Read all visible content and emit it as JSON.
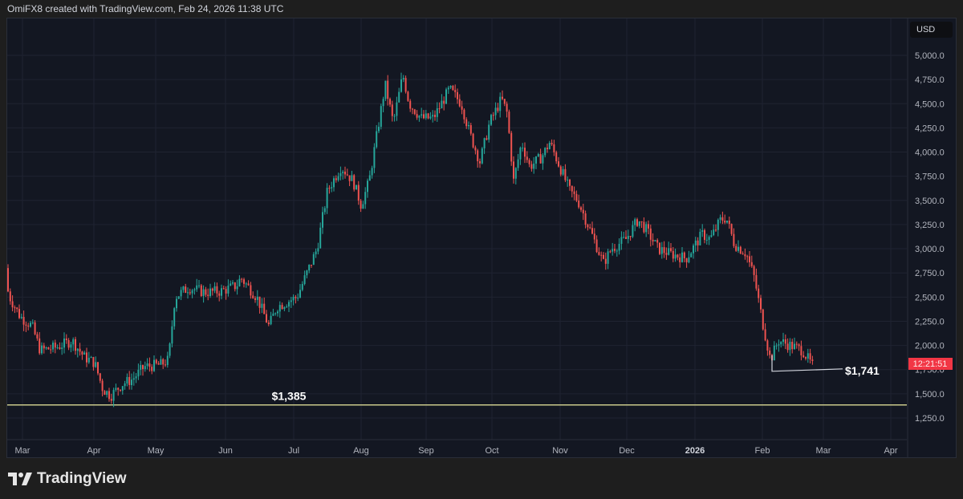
{
  "header": {
    "attribution": "OmiFX8 created with TradingView.com, Feb 24, 2026 11:38 UTC"
  },
  "currency_label": "USD",
  "countdown": "12:21:51",
  "brand": "TradingView",
  "annotations": {
    "support_label": "$1,385",
    "low_label": "$1,741"
  },
  "colors": {
    "up": "#26a69a",
    "down": "#ef5350",
    "support_line": "#c9c98a",
    "bg": "#131722",
    "grid": "#1f2331"
  },
  "chart_data": {
    "type": "candlestick",
    "title": "",
    "ylabel": "USD",
    "ylim": [
      1150,
      5150
    ],
    "y_ticks": [
      "5,000.0",
      "4,750.0",
      "4,500.0",
      "4,250.0",
      "4,000.0",
      "3,750.0",
      "3,500.0",
      "3,250.0",
      "3,000.0",
      "2,750.0",
      "2,500.0",
      "2,250.0",
      "2,000.0",
      "1,750.0",
      "1,500.0",
      "1,250.0"
    ],
    "x_ticks": [
      "Mar",
      "Apr",
      "May",
      "Jun",
      "Jul",
      "Aug",
      "Sep",
      "Oct",
      "Nov",
      "Dec",
      "2026",
      "Feb",
      "Mar",
      "Apr"
    ],
    "horizontal_line": {
      "price": 1385,
      "label": "$1,385"
    },
    "low_marker": {
      "price": 1741,
      "label": "$1,741"
    },
    "path": [
      [
        2,
        2800
      ],
      [
        12,
        2500
      ],
      [
        25,
        2300
      ],
      [
        40,
        2200
      ],
      [
        50,
        1950
      ],
      [
        70,
        1980
      ],
      [
        90,
        2050
      ],
      [
        105,
        1880
      ],
      [
        118,
        1820
      ],
      [
        128,
        1550
      ],
      [
        138,
        1480
      ],
      [
        152,
        1600
      ],
      [
        165,
        1650
      ],
      [
        180,
        1780
      ],
      [
        200,
        1800
      ],
      [
        210,
        1850
      ],
      [
        218,
        2500
      ],
      [
        235,
        2600
      ],
      [
        255,
        2550
      ],
      [
        275,
        2560
      ],
      [
        295,
        2620
      ],
      [
        300,
        2700
      ],
      [
        320,
        2500
      ],
      [
        335,
        2200
      ],
      [
        345,
        2400
      ],
      [
        370,
        2500
      ],
      [
        380,
        2700
      ],
      [
        395,
        3000
      ],
      [
        408,
        3600
      ],
      [
        425,
        3850
      ],
      [
        440,
        3700
      ],
      [
        450,
        3450
      ],
      [
        460,
        3700
      ],
      [
        470,
        4200
      ],
      [
        480,
        4700
      ],
      [
        490,
        4300
      ],
      [
        502,
        4800
      ],
      [
        510,
        4500
      ],
      [
        525,
        4350
      ],
      [
        540,
        4350
      ],
      [
        560,
        4650
      ],
      [
        575,
        4500
      ],
      [
        585,
        4200
      ],
      [
        598,
        3900
      ],
      [
        610,
        4300
      ],
      [
        625,
        4550
      ],
      [
        632,
        4400
      ],
      [
        640,
        3700
      ],
      [
        650,
        4100
      ],
      [
        660,
        3850
      ],
      [
        675,
        3950
      ],
      [
        685,
        4100
      ],
      [
        700,
        3800
      ],
      [
        710,
        3600
      ],
      [
        720,
        3500
      ],
      [
        735,
        3200
      ],
      [
        752,
        2850
      ],
      [
        762,
        3000
      ],
      [
        780,
        3100
      ],
      [
        795,
        3300
      ],
      [
        805,
        3200
      ],
      [
        820,
        3000
      ],
      [
        835,
        2950
      ],
      [
        855,
        2900
      ],
      [
        875,
        3150
      ],
      [
        885,
        3100
      ],
      [
        898,
        3300
      ],
      [
        905,
        3320
      ],
      [
        915,
        3050
      ],
      [
        930,
        2950
      ],
      [
        940,
        2700
      ],
      [
        950,
        2250
      ],
      [
        960,
        1850
      ],
      [
        970,
        2050
      ],
      [
        985,
        2000
      ],
      [
        1000,
        1950
      ],
      [
        1013,
        1780
      ]
    ],
    "last_price_approx": 1780
  }
}
